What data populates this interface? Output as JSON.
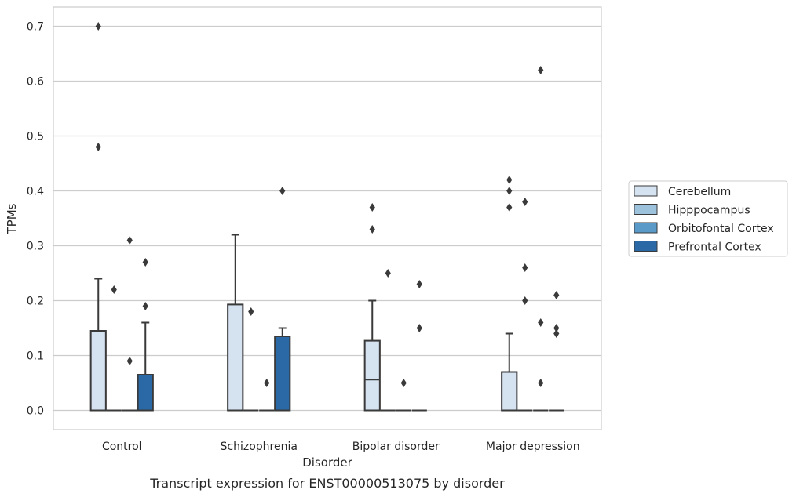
{
  "chart_data": {
    "type": "box",
    "xlabel": "Disorder",
    "ylabel": "TPMs",
    "caption": "Transcript expression for ENST00000513075 by disorder",
    "ylim": [
      -0.035,
      0.735
    ],
    "yticks": [
      "0.0",
      "0.1",
      "0.2",
      "0.3",
      "0.4",
      "0.5",
      "0.6",
      "0.7"
    ],
    "grid": "horizontal",
    "legend_position": "right",
    "categories": [
      "Control",
      "Schizophrenia",
      "Bipolar disorder",
      "Major depression"
    ],
    "series": [
      {
        "name": "Cerebellum",
        "color": "#d5e2ef",
        "boxes": [
          {
            "q1": 0,
            "median": 0,
            "q3": 0.145,
            "whisker_low": 0,
            "whisker_high": 0.24,
            "outliers": [
              0.48,
              0.7
            ]
          },
          {
            "q1": 0,
            "median": 0,
            "q3": 0.193,
            "whisker_low": 0,
            "whisker_high": 0.32,
            "outliers": []
          },
          {
            "q1": 0,
            "median": 0.056,
            "q3": 0.127,
            "whisker_low": 0,
            "whisker_high": 0.2,
            "outliers": [
              0.33,
              0.37
            ]
          },
          {
            "q1": 0,
            "median": 0,
            "q3": 0.07,
            "whisker_low": 0,
            "whisker_high": 0.14,
            "outliers": [
              0.37,
              0.4,
              0.42
            ]
          }
        ]
      },
      {
        "name": "Hipppocampus",
        "color": "#9dc3dc",
        "boxes": [
          {
            "q1": 0,
            "median": 0,
            "q3": 0,
            "whisker_low": 0,
            "whisker_high": 0,
            "outliers": [
              0.22
            ]
          },
          {
            "q1": 0,
            "median": 0,
            "q3": 0,
            "whisker_low": 0,
            "whisker_high": 0,
            "outliers": [
              0.18
            ]
          },
          {
            "q1": 0,
            "median": 0,
            "q3": 0,
            "whisker_low": 0,
            "whisker_high": 0,
            "outliers": [
              0.25
            ]
          },
          {
            "q1": 0,
            "median": 0,
            "q3": 0,
            "whisker_low": 0,
            "whisker_high": 0,
            "outliers": [
              0.2,
              0.26,
              0.38
            ]
          }
        ]
      },
      {
        "name": "Orbitofontal Cortex",
        "color": "#5a9ac8",
        "boxes": [
          {
            "q1": 0,
            "median": 0,
            "q3": 0,
            "whisker_low": 0,
            "whisker_high": 0,
            "outliers": [
              0.09,
              0.31
            ]
          },
          {
            "q1": 0,
            "median": 0,
            "q3": 0,
            "whisker_low": 0,
            "whisker_high": 0,
            "outliers": [
              0.05
            ]
          },
          {
            "q1": 0,
            "median": 0,
            "q3": 0,
            "whisker_low": 0,
            "whisker_high": 0,
            "outliers": [
              0.05
            ]
          },
          {
            "q1": 0,
            "median": 0,
            "q3": 0,
            "whisker_low": 0,
            "whisker_high": 0,
            "outliers": [
              0.05,
              0.16,
              0.62
            ]
          }
        ]
      },
      {
        "name": "Prefrontal Cortex",
        "color": "#2a69a5",
        "boxes": [
          {
            "q1": 0,
            "median": 0,
            "q3": 0.065,
            "whisker_low": 0,
            "whisker_high": 0.16,
            "outliers": [
              0.19,
              0.27
            ]
          },
          {
            "q1": 0,
            "median": 0,
            "q3": 0.135,
            "whisker_low": 0,
            "whisker_high": 0.15,
            "outliers": [
              0.4
            ]
          },
          {
            "q1": 0,
            "median": 0,
            "q3": 0,
            "whisker_low": 0,
            "whisker_high": 0,
            "outliers": [
              0.15,
              0.23
            ]
          },
          {
            "q1": 0,
            "median": 0,
            "q3": 0,
            "whisker_low": 0,
            "whisker_high": 0,
            "outliers": [
              0.14,
              0.15,
              0.21
            ]
          }
        ]
      }
    ]
  }
}
